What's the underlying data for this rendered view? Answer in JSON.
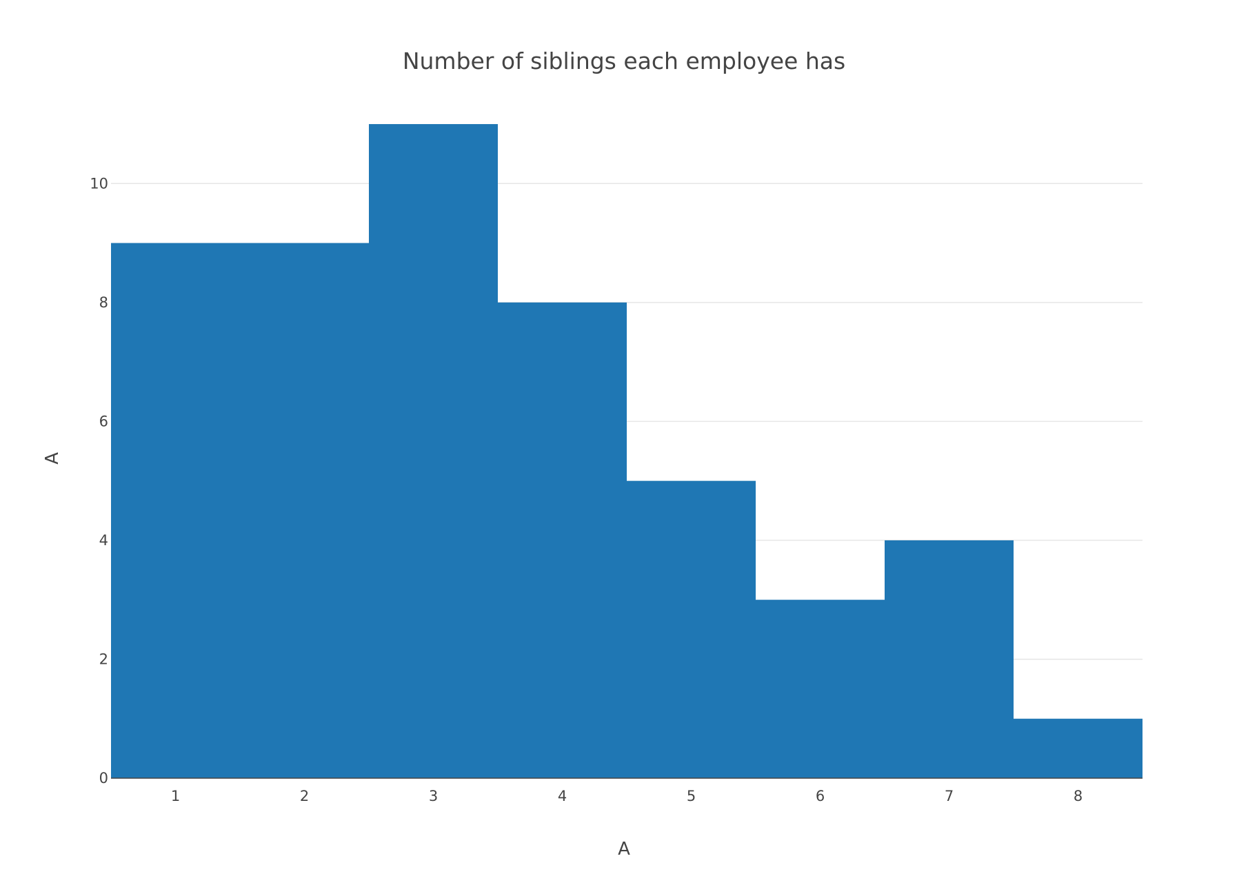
{
  "chart_data": {
    "type": "bar",
    "title": "Number of siblings each employee has",
    "xlabel": "A",
    "ylabel": "A",
    "categories": [
      1,
      2,
      3,
      4,
      5,
      6,
      7,
      8
    ],
    "values": [
      9,
      9,
      11,
      8,
      5,
      3,
      4,
      1
    ],
    "x_ticks": [
      "1",
      "2",
      "3",
      "4",
      "5",
      "6",
      "7",
      "8"
    ],
    "y_ticks": [
      0,
      2,
      4,
      6,
      8,
      10
    ],
    "xlim": [
      0.5,
      8.5
    ],
    "ylim": [
      0,
      11.58
    ],
    "grid": true,
    "bar_color": "#1f77b4",
    "bar_gap": 0
  }
}
